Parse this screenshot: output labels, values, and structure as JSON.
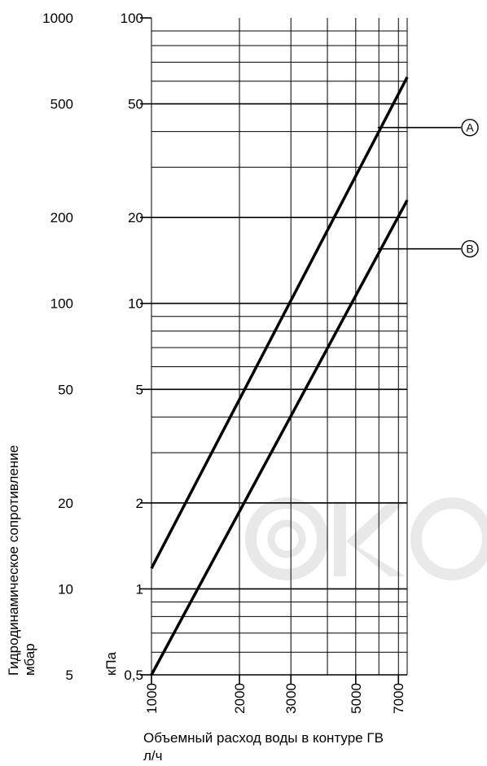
{
  "chart_data": {
    "type": "line",
    "xscale": "log",
    "yscale": "log",
    "grid": true,
    "xlim": [
      1000,
      7500
    ],
    "ylim": [
      0.5,
      100
    ],
    "x_ticks": [
      1000,
      2000,
      3000,
      5000,
      7000
    ],
    "x_tick_labels": [
      "1000",
      "2000",
      "3000",
      "5000",
      "7000"
    ],
    "y_ticks_kpa": [
      0.5,
      1,
      2,
      5,
      10,
      20,
      50,
      100
    ],
    "y_tick_labels_kpa": [
      "0,5",
      "1",
      "2",
      "5",
      "10",
      "20",
      "50",
      "100"
    ],
    "y_tick_labels_mbar": [
      "5",
      "10",
      "20",
      "50",
      "100",
      "200",
      "500",
      "1000"
    ],
    "ylabel": "Гидродинамическое сопротивление",
    "ylabel_unit_mbar": "мбар",
    "ylabel_unit_kpa": "кПа",
    "xlabel": "Объемный расход воды в контуре ГВ",
    "xlabel_unit": "л/ч",
    "series": [
      {
        "name": "A",
        "x": [
          1000,
          7500
        ],
        "y": [
          1.18,
          62
        ]
      },
      {
        "name": "B",
        "x": [
          1000,
          7500
        ],
        "y": [
          0.5,
          23
        ]
      }
    ]
  },
  "watermark": "©KO"
}
